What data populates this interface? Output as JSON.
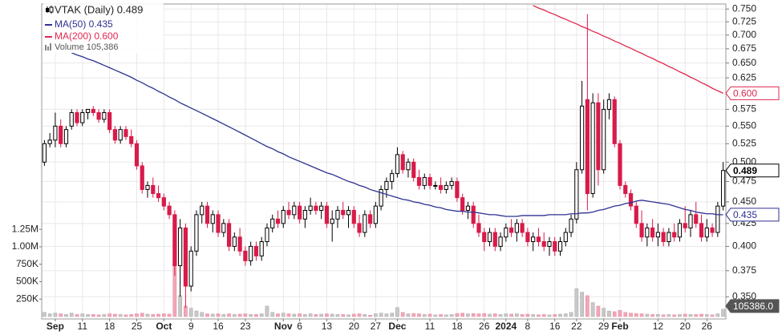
{
  "chart_data": {
    "type": "candlestick",
    "title": "VTAK (Daily) 0.489",
    "log_scale": true,
    "grid": true,
    "up_color": "#000000",
    "down_color": "#d81b4a",
    "hollow_color": "#ffffff",
    "categories": [
      null,
      null,
      "Sep",
      null,
      null,
      null,
      null,
      "11",
      null,
      null,
      null,
      null,
      "18",
      null,
      null,
      null,
      null,
      "25",
      null,
      null,
      null,
      null,
      "Oct",
      null,
      null,
      null,
      null,
      "9",
      null,
      null,
      null,
      null,
      "16",
      null,
      null,
      null,
      null,
      "23",
      null,
      null,
      null,
      null,
      null,
      null,
      "Nov",
      null,
      null,
      "6",
      null,
      null,
      null,
      null,
      "13",
      null,
      null,
      null,
      null,
      "20",
      null,
      null,
      null,
      "27",
      null,
      null,
      null,
      "Dec",
      null,
      null,
      null,
      null,
      null,
      "11",
      null,
      null,
      null,
      null,
      "18",
      null,
      null,
      null,
      null,
      "26",
      null,
      null,
      null,
      "2024",
      null,
      null,
      null,
      "8",
      null,
      null,
      null,
      null,
      "16",
      null,
      null,
      null,
      "22",
      null,
      null,
      null,
      null,
      "29",
      null,
      null,
      "Feb",
      null,
      null,
      null,
      null,
      null,
      null,
      "12",
      null,
      null,
      null,
      null,
      "20",
      null,
      null,
      null,
      "26",
      null,
      null,
      null
    ],
    "bold_categories": [
      "Sep",
      "Oct",
      "Nov",
      "Dec",
      "2024",
      "Feb"
    ],
    "open": [
      0.5,
      0.525,
      0.53,
      0.55,
      0.525,
      0.55,
      0.57,
      0.555,
      0.57,
      0.575,
      0.57,
      0.56,
      0.57,
      0.545,
      0.53,
      0.545,
      0.535,
      0.525,
      0.495,
      0.465,
      0.47,
      0.46,
      0.455,
      0.445,
      0.435,
      0.38,
      0.42,
      0.36,
      0.395,
      0.435,
      0.445,
      0.425,
      0.435,
      0.415,
      0.425,
      0.4,
      0.41,
      0.395,
      0.385,
      0.4,
      0.39,
      0.405,
      0.42,
      0.43,
      0.425,
      0.44,
      0.435,
      0.445,
      0.43,
      0.44,
      0.445,
      0.44,
      0.445,
      0.425,
      0.43,
      0.44,
      0.435,
      0.44,
      0.425,
      0.415,
      0.435,
      0.425,
      0.445,
      0.465,
      0.475,
      0.485,
      0.51,
      0.49,
      0.5,
      0.48,
      0.47,
      0.48,
      0.47,
      0.47,
      0.465,
      0.47,
      0.475,
      0.455,
      0.44,
      0.445,
      0.425,
      0.415,
      0.405,
      0.415,
      0.4,
      0.41,
      0.42,
      0.415,
      0.425,
      0.415,
      0.405,
      0.41,
      0.405,
      0.4,
      0.405,
      0.395,
      0.405,
      0.415,
      0.43,
      0.49,
      0.59,
      0.46,
      0.585,
      0.49,
      0.575,
      0.59,
      0.525,
      0.47,
      0.46,
      0.445,
      0.425,
      0.41,
      0.42,
      0.41,
      0.415,
      0.405,
      0.415,
      0.41,
      0.425,
      0.42,
      0.435,
      0.425,
      0.41,
      0.42,
      0.415,
      0.445
    ],
    "high": [
      0.53,
      0.54,
      0.57,
      0.56,
      0.55,
      0.575,
      0.575,
      0.575,
      0.575,
      0.58,
      0.575,
      0.575,
      0.575,
      0.55,
      0.55,
      0.55,
      0.545,
      0.53,
      0.5,
      0.475,
      0.48,
      0.47,
      0.46,
      0.45,
      0.44,
      0.43,
      0.425,
      0.4,
      0.44,
      0.45,
      0.45,
      0.44,
      0.44,
      0.43,
      0.43,
      0.415,
      0.42,
      0.4,
      0.405,
      0.405,
      0.41,
      0.425,
      0.435,
      0.44,
      0.445,
      0.45,
      0.45,
      0.45,
      0.445,
      0.455,
      0.45,
      0.45,
      0.45,
      0.44,
      0.445,
      0.45,
      0.445,
      0.445,
      0.435,
      0.44,
      0.44,
      0.45,
      0.47,
      0.48,
      0.49,
      0.52,
      0.515,
      0.505,
      0.505,
      0.49,
      0.485,
      0.485,
      0.475,
      0.48,
      0.475,
      0.48,
      0.48,
      0.46,
      0.45,
      0.45,
      0.435,
      0.42,
      0.42,
      0.42,
      0.415,
      0.425,
      0.43,
      0.43,
      0.43,
      0.42,
      0.415,
      0.42,
      0.415,
      0.41,
      0.41,
      0.41,
      0.42,
      0.435,
      0.5,
      0.62,
      0.74,
      0.6,
      0.6,
      0.59,
      0.6,
      0.595,
      0.53,
      0.475,
      0.465,
      0.45,
      0.44,
      0.425,
      0.43,
      0.425,
      0.42,
      0.42,
      0.425,
      0.43,
      0.445,
      0.44,
      0.45,
      0.435,
      0.43,
      0.425,
      0.45,
      0.5
    ],
    "low": [
      0.495,
      0.52,
      0.52,
      0.52,
      0.52,
      0.545,
      0.55,
      0.55,
      0.56,
      0.565,
      0.555,
      0.555,
      0.54,
      0.525,
      0.525,
      0.53,
      0.52,
      0.49,
      0.46,
      0.455,
      0.455,
      0.45,
      0.44,
      0.43,
      0.37,
      0.35,
      0.34,
      0.355,
      0.39,
      0.425,
      0.42,
      0.415,
      0.41,
      0.41,
      0.395,
      0.395,
      0.39,
      0.38,
      0.38,
      0.385,
      0.385,
      0.4,
      0.415,
      0.42,
      0.42,
      0.43,
      0.43,
      0.425,
      0.42,
      0.435,
      0.435,
      0.43,
      0.42,
      0.405,
      0.42,
      0.43,
      0.42,
      0.42,
      0.41,
      0.41,
      0.42,
      0.42,
      0.44,
      0.455,
      0.465,
      0.48,
      0.485,
      0.48,
      0.475,
      0.465,
      0.465,
      0.465,
      0.465,
      0.46,
      0.46,
      0.465,
      0.45,
      0.435,
      0.43,
      0.42,
      0.41,
      0.395,
      0.4,
      0.395,
      0.395,
      0.405,
      0.41,
      0.405,
      0.41,
      0.4,
      0.395,
      0.4,
      0.395,
      0.39,
      0.39,
      0.39,
      0.4,
      0.41,
      0.425,
      0.485,
      0.44,
      0.455,
      0.47,
      0.485,
      0.56,
      0.52,
      0.465,
      0.455,
      0.44,
      0.42,
      0.405,
      0.4,
      0.405,
      0.4,
      0.4,
      0.4,
      0.405,
      0.405,
      0.415,
      0.41,
      0.42,
      0.405,
      0.405,
      0.41,
      0.41,
      0.44
    ],
    "close": [
      0.525,
      0.53,
      0.55,
      0.525,
      0.545,
      0.57,
      0.555,
      0.57,
      0.575,
      0.57,
      0.56,
      0.57,
      0.545,
      0.53,
      0.545,
      0.535,
      0.525,
      0.495,
      0.465,
      0.47,
      0.46,
      0.455,
      0.445,
      0.435,
      0.38,
      0.42,
      0.36,
      0.395,
      0.435,
      0.445,
      0.425,
      0.435,
      0.415,
      0.425,
      0.4,
      0.41,
      0.395,
      0.385,
      0.4,
      0.39,
      0.405,
      0.42,
      0.43,
      0.425,
      0.44,
      0.435,
      0.445,
      0.43,
      0.44,
      0.445,
      0.44,
      0.445,
      0.425,
      0.43,
      0.44,
      0.435,
      0.44,
      0.425,
      0.415,
      0.435,
      0.425,
      0.445,
      0.465,
      0.475,
      0.485,
      0.51,
      0.49,
      0.5,
      0.48,
      0.47,
      0.48,
      0.47,
      0.47,
      0.465,
      0.47,
      0.475,
      0.455,
      0.44,
      0.445,
      0.425,
      0.415,
      0.405,
      0.415,
      0.4,
      0.41,
      0.42,
      0.415,
      0.425,
      0.415,
      0.405,
      0.41,
      0.405,
      0.4,
      0.405,
      0.395,
      0.405,
      0.415,
      0.43,
      0.49,
      0.58,
      0.46,
      0.585,
      0.49,
      0.575,
      0.59,
      0.525,
      0.47,
      0.46,
      0.445,
      0.425,
      0.41,
      0.42,
      0.41,
      0.415,
      0.405,
      0.415,
      0.41,
      0.425,
      0.42,
      0.435,
      0.425,
      0.41,
      0.42,
      0.415,
      0.445,
      0.489
    ],
    "volume": {
      "name": "Volume 105,386",
      "axis": "y2",
      "up_color": "#c8c8c8",
      "down_color": "#f2a6b6",
      "values": [
        60000,
        40000,
        50000,
        40000,
        30000,
        50000,
        30000,
        40000,
        30000,
        30000,
        25000,
        30000,
        40000,
        35000,
        30000,
        25000,
        30000,
        40000,
        50000,
        35000,
        30000,
        35000,
        40000,
        35000,
        1250000,
        300000,
        150000,
        120000,
        80000,
        60000,
        40000,
        35000,
        40000,
        30000,
        40000,
        30000,
        35000,
        40000,
        30000,
        30000,
        40000,
        150000,
        60000,
        40000,
        50000,
        40000,
        35000,
        40000,
        30000,
        40000,
        30000,
        35000,
        40000,
        35000,
        30000,
        30000,
        25000,
        35000,
        40000,
        30000,
        20000,
        40000,
        50000,
        40000,
        50000,
        130000,
        60000,
        40000,
        45000,
        40000,
        30000,
        35000,
        25000,
        30000,
        25000,
        30000,
        45000,
        50000,
        40000,
        45000,
        40000,
        45000,
        35000,
        40000,
        30000,
        40000,
        35000,
        40000,
        30000,
        35000,
        30000,
        25000,
        30000,
        25000,
        30000,
        35000,
        40000,
        60000,
        400000,
        350000,
        300000,
        200000,
        150000,
        120000,
        80000,
        70000,
        90000,
        60000,
        50000,
        45000,
        40000,
        35000,
        30000,
        30000,
        25000,
        30000,
        25000,
        30000,
        35000,
        30000,
        30000,
        35000,
        30000,
        25000,
        40000,
        105386
      ]
    },
    "series": [
      {
        "name": "MA(50) 0.435",
        "color": "#2e3192",
        "values": [
          null,
          null,
          null,
          null,
          null,
          0.668,
          0.664,
          0.661,
          0.657,
          0.654,
          0.65,
          0.646,
          0.642,
          0.638,
          0.634,
          0.63,
          0.626,
          0.621,
          0.617,
          0.612,
          0.608,
          0.603,
          0.599,
          0.594,
          0.59,
          0.585,
          0.581,
          0.577,
          0.573,
          0.569,
          0.565,
          0.561,
          0.557,
          0.553,
          0.549,
          0.545,
          0.541,
          0.537,
          0.533,
          0.529,
          0.525,
          0.521,
          0.518,
          0.514,
          0.511,
          0.507,
          0.504,
          0.501,
          0.498,
          0.495,
          0.492,
          0.489,
          0.486,
          0.484,
          0.481,
          0.478,
          0.475,
          0.473,
          0.47,
          0.468,
          0.465,
          0.463,
          0.461,
          0.459,
          0.457,
          0.455,
          0.453,
          0.452,
          0.45,
          0.449,
          0.447,
          0.446,
          0.444,
          0.443,
          0.441,
          0.44,
          0.439,
          0.439,
          0.438,
          0.438,
          0.437,
          0.436,
          0.435,
          0.435,
          0.434,
          0.433,
          0.433,
          0.433,
          0.434,
          0.434,
          0.434,
          0.434,
          0.434,
          0.435,
          0.435,
          0.435,
          0.435,
          0.436,
          0.436,
          0.437,
          0.437,
          0.438,
          0.44,
          0.441,
          0.443,
          0.445,
          0.446,
          0.448,
          0.449,
          0.451,
          0.452,
          0.451,
          0.45,
          0.449,
          0.448,
          0.447,
          0.445,
          0.443,
          0.441,
          0.44,
          0.438,
          0.437,
          0.436,
          0.436,
          0.435,
          0.435
        ]
      },
      {
        "name": "MA(200) 0.600",
        "color": "#e0284f",
        "values": [
          null,
          null,
          null,
          null,
          null,
          null,
          null,
          null,
          null,
          null,
          null,
          null,
          null,
          null,
          null,
          null,
          null,
          null,
          null,
          null,
          null,
          null,
          null,
          null,
          null,
          null,
          null,
          null,
          null,
          null,
          null,
          null,
          null,
          null,
          null,
          null,
          null,
          null,
          null,
          null,
          null,
          null,
          null,
          null,
          null,
          null,
          null,
          null,
          null,
          null,
          null,
          null,
          null,
          null,
          null,
          null,
          null,
          null,
          null,
          null,
          null,
          null,
          null,
          null,
          null,
          null,
          null,
          null,
          null,
          null,
          null,
          null,
          null,
          null,
          null,
          null,
          null,
          null,
          null,
          null,
          null,
          null,
          null,
          null,
          null,
          null,
          null,
          null,
          null,
          null,
          0.757,
          0.752,
          0.748,
          0.743,
          0.739,
          0.734,
          0.73,
          0.725,
          0.721,
          0.716,
          0.712,
          0.707,
          0.703,
          0.698,
          0.694,
          0.689,
          0.685,
          0.68,
          0.676,
          0.671,
          0.667,
          0.662,
          0.658,
          0.653,
          0.649,
          0.644,
          0.64,
          0.635,
          0.631,
          0.626,
          0.622,
          0.617,
          0.613,
          0.608,
          0.604,
          0.6
        ]
      }
    ],
    "ylim": [
      0.33,
      0.76
    ],
    "yticks": [
      {
        "value": 0.35,
        "label": "0.350"
      },
      {
        "value": 0.375,
        "label": "0.375"
      },
      {
        "value": 0.4,
        "label": "0.400"
      },
      {
        "value": 0.425,
        "label": "0.425"
      },
      {
        "value": 0.45,
        "label": "0.450"
      },
      {
        "value": 0.475,
        "label": "0.475"
      },
      {
        "value": 0.5,
        "label": "0.500"
      },
      {
        "value": 0.525,
        "label": "0.525"
      },
      {
        "value": 0.55,
        "label": "0.550"
      },
      {
        "value": 0.575,
        "label": "0.575"
      },
      {
        "value": 0.625,
        "label": "0.625"
      },
      {
        "value": 0.65,
        "label": "0.650"
      },
      {
        "value": 0.675,
        "label": "0.675"
      },
      {
        "value": 0.7,
        "label": "0.700"
      },
      {
        "value": 0.725,
        "label": "0.725"
      },
      {
        "value": 0.75,
        "label": "0.750"
      }
    ],
    "y2lim": [
      0,
      4480000
    ],
    "y2ticks": [
      {
        "value": 250000,
        "label": "250K"
      },
      {
        "value": 500000,
        "label": "500K"
      },
      {
        "value": 750000,
        "label": "750K"
      },
      {
        "value": 1000000,
        "label": "1.00M"
      },
      {
        "value": 1250000,
        "label": "1.25M"
      }
    ],
    "flags": [
      {
        "value": 0.6,
        "label": "0.600",
        "color": "#e0284f",
        "axis": "y"
      },
      {
        "value": 0.489,
        "label": "0.489",
        "color": "#000000",
        "axis": "y"
      },
      {
        "value": 0.435,
        "label": "0.435",
        "color": "#2e3192",
        "axis": "y"
      },
      {
        "value": 105386,
        "label": "105386.0",
        "color": "#555555",
        "axis": "y2"
      }
    ]
  }
}
